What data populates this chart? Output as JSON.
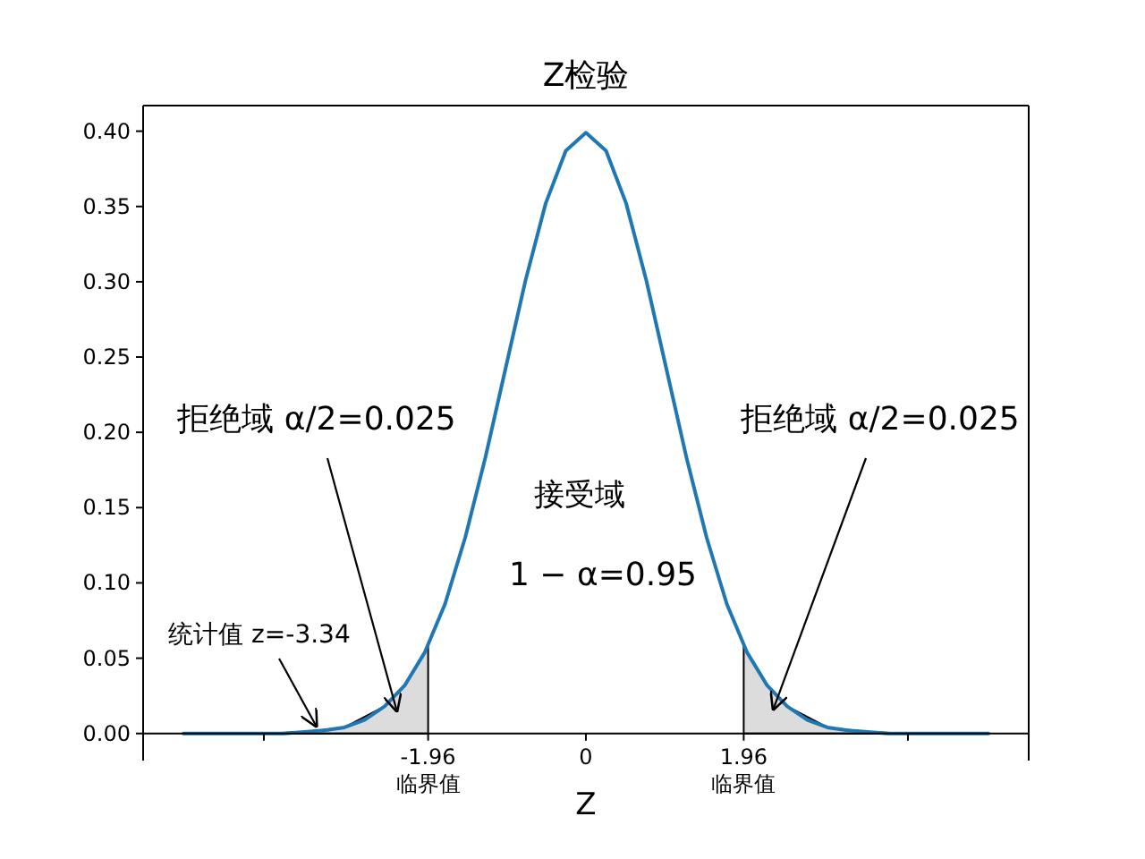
{
  "chart_data": {
    "type": "line",
    "title": "Z检验",
    "xlabel": "Z",
    "xlim": [
      -5.5,
      5.5
    ],
    "ylim": [
      -0.018,
      0.417
    ],
    "xticks": [
      {
        "value": -4,
        "label": null
      },
      {
        "value": -1.96,
        "label": "-1.96\n临界值"
      },
      0,
      {
        "value": 1.96,
        "label": "1.96\n临界值"
      },
      {
        "value": 4,
        "label": null
      }
    ],
    "yticks": [
      {
        "value": 0,
        "label": "0.00"
      },
      0.05,
      {
        "value": 0.1,
        "label": "0.10"
      },
      0.15,
      {
        "value": 0.2,
        "label": "0.20"
      },
      0.25,
      {
        "value": 0.3,
        "label": "0.30"
      },
      0.35,
      {
        "value": 0.4,
        "label": "0.40"
      }
    ],
    "series": [
      {
        "type": "area",
        "color": "#dcdcdc",
        "x": [
          -5,
          -4.5,
          -4,
          -3.5,
          -3,
          -2.5,
          -2.25,
          -2,
          -1.96
        ],
        "values": [
          0,
          0,
          0,
          0.001,
          0.004,
          0.018,
          0.032,
          0.054,
          0.058
        ]
      },
      {
        "type": "area",
        "color": "#dcdcdc",
        "x": [
          1.96,
          2,
          2.25,
          2.5,
          3,
          3.5,
          4,
          4.5,
          5
        ],
        "values": [
          0.058,
          0.054,
          0.032,
          0.018,
          0.004,
          0.001,
          0,
          0,
          0
        ]
      },
      {
        "type": "line",
        "color": "#1f77b4",
        "x": [
          -5,
          -4.75,
          -4.5,
          -4.25,
          -4,
          -3.75,
          -3.5,
          -3.25,
          -3,
          -2.75,
          -2.5,
          -2.25,
          -2,
          -1.75,
          -1.5,
          -1.25,
          -1,
          -0.75,
          -0.5,
          -0.25,
          0,
          0.25,
          0.5,
          0.75,
          1,
          1.25,
          1.5,
          1.75,
          2,
          2.25,
          2.5,
          2.75,
          3,
          3.25,
          3.5,
          3.75,
          4,
          4.25,
          4.5,
          4.75,
          5
        ],
        "values": [
          0,
          0,
          0,
          0,
          0,
          0,
          0.001,
          0.002,
          0.004,
          0.009,
          0.018,
          0.032,
          0.054,
          0.086,
          0.13,
          0.183,
          0.242,
          0.301,
          0.352,
          0.387,
          0.399,
          0.387,
          0.352,
          0.301,
          0.242,
          0.183,
          0.13,
          0.086,
          0.054,
          0.032,
          0.018,
          0.009,
          0.004,
          0.002,
          0.001,
          0,
          0,
          0,
          0,
          0,
          0
        ]
      }
    ],
    "annotations": [
      "拒绝域 α/2=0.025",
      "拒绝域 α/2=0.025",
      {
        "text": "统计值 z=-3.34",
        "x": -3.34,
        "y": 0.004
      },
      "接受域",
      "1 − α=0.95"
    ]
  }
}
